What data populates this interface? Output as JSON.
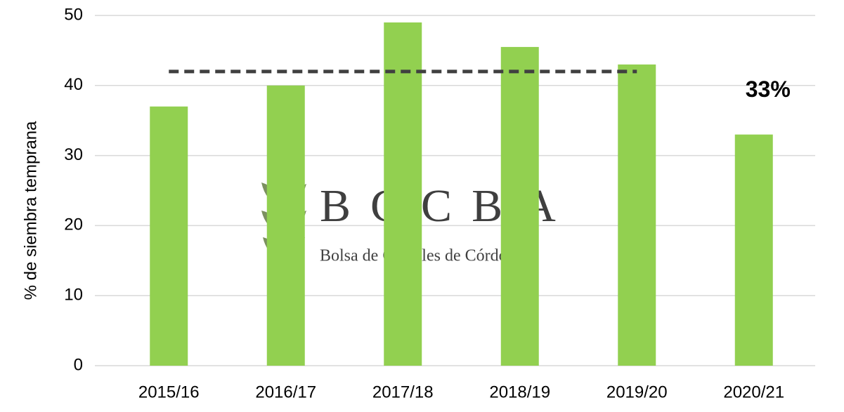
{
  "chart_data": {
    "type": "bar",
    "y_label": "% de siembra temprana",
    "categories": [
      "2015/16",
      "2016/17",
      "2017/18",
      "2018/19",
      "2019/20",
      "2020/21"
    ],
    "values": [
      37,
      40,
      49,
      45.5,
      43,
      33
    ],
    "value_labels": [
      null,
      null,
      null,
      null,
      null,
      "33%"
    ],
    "color": "#92d050",
    "ylim": [
      0,
      50
    ],
    "yticks": [
      0,
      10,
      20,
      30,
      40,
      50
    ],
    "grid": true,
    "reference_line": {
      "value": 42,
      "color": "#404040"
    },
    "watermark": {
      "logo": "BCCBA",
      "subtitle": "Bolsa de Cereales de Córdoba"
    }
  }
}
